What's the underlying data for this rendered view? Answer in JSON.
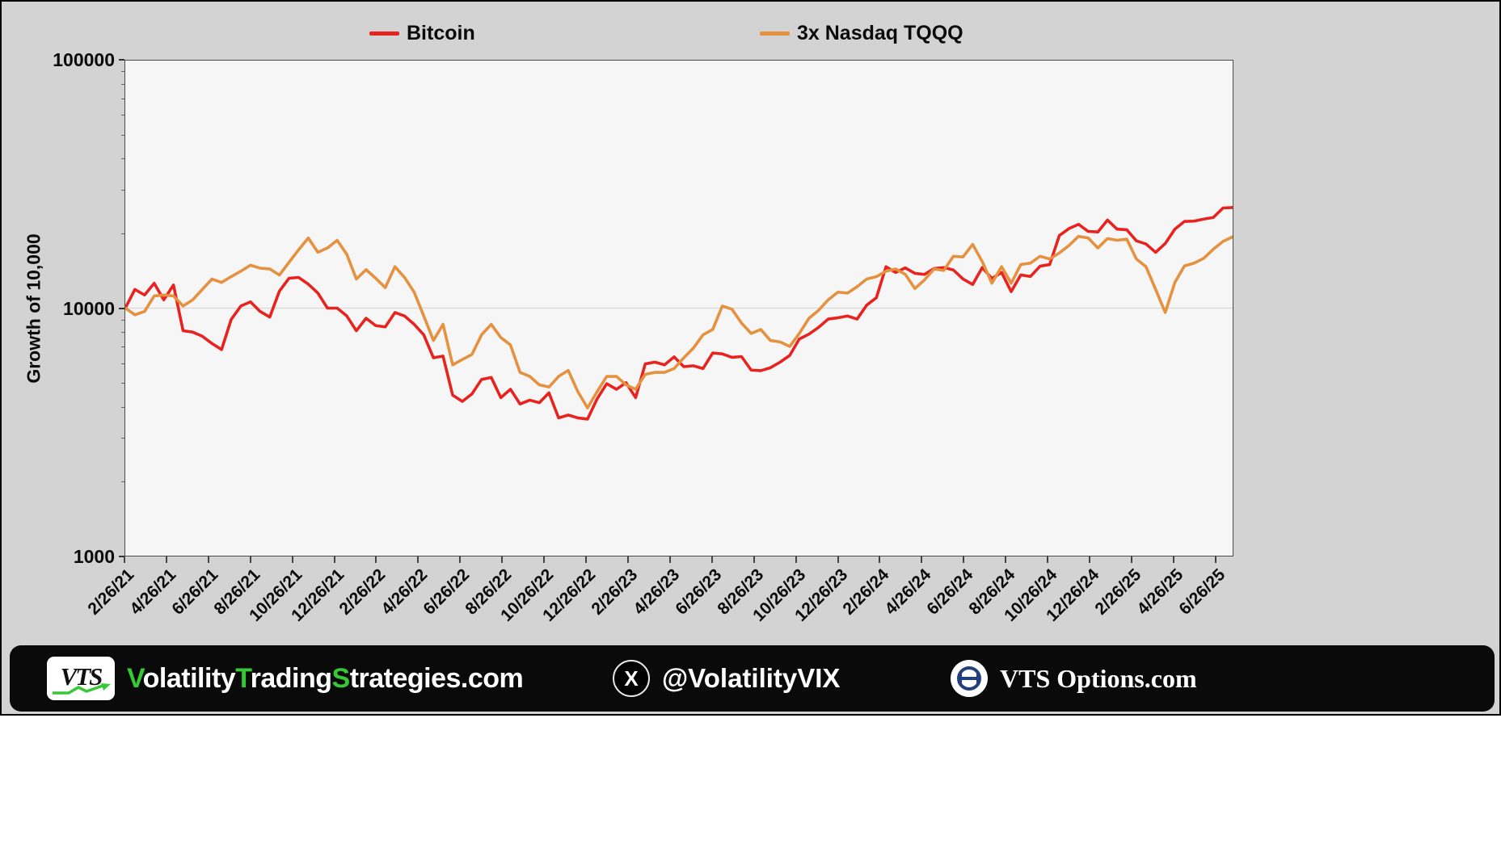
{
  "colors": {
    "panel_background": "#d3d3d3",
    "plot_background": "#f6f6f6",
    "bitcoin_red": "#e8231f",
    "tqqq_orange": "#e5913f",
    "brand_green": "#35c935",
    "options_blue": "#23407c",
    "footer_black": "#0a0a0a"
  },
  "chart_data": {
    "type": "line",
    "title": "",
    "xlabel": "",
    "ylabel": "Growth of 10,000",
    "yscale": "log",
    "ylim": [
      1000,
      100000
    ],
    "grid": "horizontal line at 10000 only",
    "legend_position": "top, outside plot",
    "gridlines_y": [
      10000
    ],
    "y_ticks": [
      {
        "value": 100000,
        "label": "100000"
      },
      {
        "value": 10000,
        "label": "10000"
      },
      {
        "value": 1000,
        "label": "1000"
      }
    ],
    "x_tick_labels": [
      "2/26/21",
      "4/26/21",
      "6/26/21",
      "8/26/21",
      "10/26/21",
      "12/26/21",
      "2/26/22",
      "4/26/22",
      "6/26/22",
      "8/26/22",
      "10/26/22",
      "12/26/22",
      "2/26/23",
      "4/26/23",
      "6/26/23",
      "8/26/23",
      "10/26/23",
      "12/26/23",
      "2/26/24",
      "4/26/24",
      "6/26/24",
      "8/26/24",
      "10/26/24",
      "12/26/24",
      "2/26/25",
      "4/26/25",
      "6/26/25"
    ],
    "x_tick_interval_days": 60.92,
    "x_total_days": 1610,
    "point_interval_days": 14,
    "series": [
      {
        "name": "Bitcoin",
        "color": "#e8231f",
        "values": [
          10000,
          11900,
          11300,
          12600,
          10800,
          12400,
          8100,
          8000,
          7700,
          7200,
          6800,
          9000,
          10200,
          10600,
          9700,
          9200,
          11700,
          13200,
          13300,
          12500,
          11500,
          10000,
          10000,
          9300,
          8100,
          9100,
          8500,
          8400,
          9600,
          9300,
          8600,
          7800,
          6300,
          6400,
          4450,
          4200,
          4500,
          5150,
          5250,
          4350,
          4700,
          4100,
          4250,
          4150,
          4550,
          3600,
          3700,
          3600,
          3560,
          4300,
          4950,
          4700,
          5000,
          4350,
          5950,
          6050,
          5900,
          6350,
          5800,
          5850,
          5700,
          6590,
          6530,
          6330,
          6370,
          5620,
          5590,
          5740,
          6050,
          6440,
          7500,
          7850,
          8360,
          9030,
          9140,
          9290,
          9030,
          10280,
          11020,
          14690,
          13930,
          14540,
          13820,
          13690,
          14470,
          14580,
          14260,
          13110,
          12460,
          14580,
          13170,
          13930,
          11660,
          13610,
          13420,
          14770,
          14990,
          19650,
          20950,
          21810,
          20410,
          20300,
          22680,
          20840,
          20730,
          18700,
          18160,
          16800,
          18250,
          20840,
          22400,
          22460,
          22890,
          23240,
          25380,
          25490
        ]
      },
      {
        "name": "3x Nasdaq TQQQ",
        "color": "#e5913f",
        "values": [
          10000,
          9400,
          9700,
          11200,
          11300,
          11200,
          10200,
          10800,
          11900,
          13100,
          12700,
          13400,
          14100,
          14900,
          14500,
          14400,
          13600,
          15300,
          17200,
          19200,
          16800,
          17500,
          18800,
          16500,
          13100,
          14300,
          13200,
          12100,
          14700,
          13300,
          11600,
          9300,
          7400,
          8600,
          5900,
          6200,
          6500,
          7800,
          8600,
          7600,
          7100,
          5500,
          5300,
          4900,
          4800,
          5300,
          5600,
          4600,
          3950,
          4600,
          5300,
          5300,
          4900,
          4700,
          5400,
          5500,
          5500,
          5700,
          6300,
          6900,
          7800,
          8200,
          10200,
          9900,
          8700,
          7900,
          8200,
          7400,
          7300,
          7000,
          7900,
          9100,
          9800,
          10800,
          11600,
          11500,
          12200,
          13100,
          13400,
          14100,
          14400,
          13700,
          12000,
          13000,
          14400,
          14200,
          16200,
          16100,
          18100,
          15400,
          12600,
          14700,
          12600,
          15000,
          15200,
          16200,
          15800,
          16700,
          17900,
          19500,
          19200,
          17500,
          19100,
          18800,
          19000,
          15800,
          14700,
          11900,
          9600,
          12700,
          14800,
          15200,
          15900,
          17300,
          18600,
          19400
        ]
      }
    ]
  },
  "footer": {
    "logo_text": "VTS",
    "brand": {
      "word1": "Volatility",
      "word2": "Trading",
      "word3": "Strategies",
      "suffix": ".com"
    },
    "x_icon_glyph": "X",
    "twitter_handle": "@VolatilityVIX",
    "options_site": "VTS Options.com"
  }
}
